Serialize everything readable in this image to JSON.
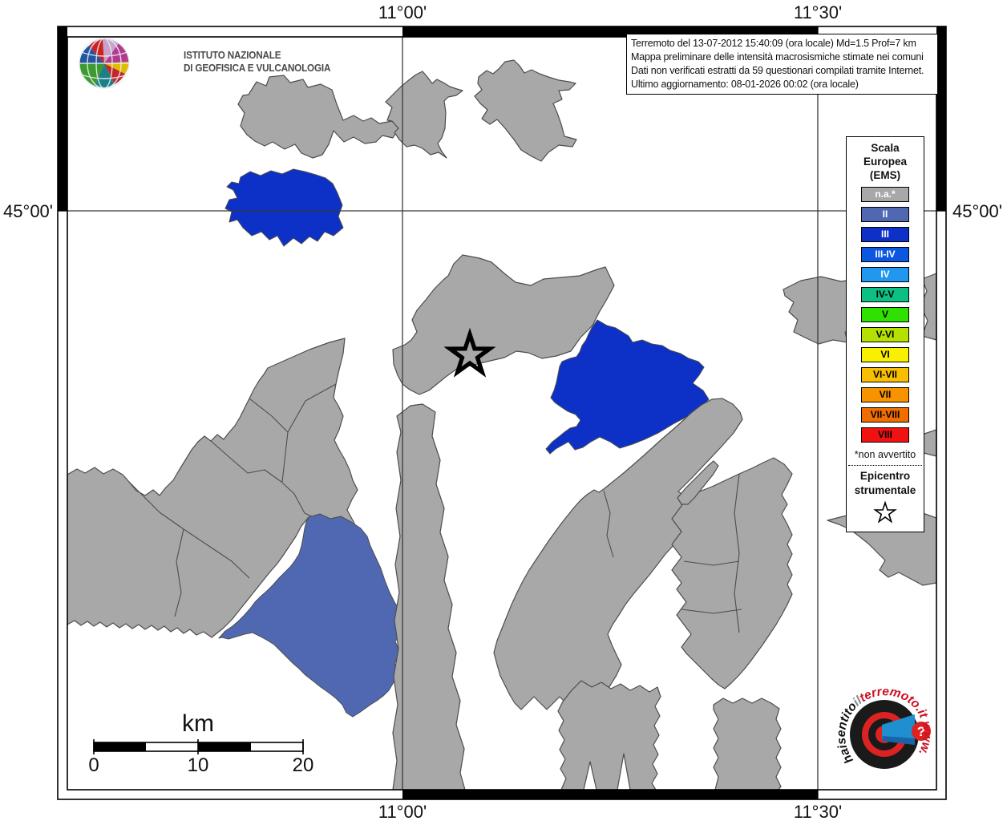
{
  "map": {
    "colors": {
      "land": "#a8a8a8",
      "border": "#4d4d4d",
      "int2": "#4f68b1",
      "int3": "#0d31c6",
      "grid": "#3a3a3a"
    },
    "axis": {
      "top_left": "11°00'",
      "top_right": "11°30'",
      "bottom_left": "11°00'",
      "bottom_right": "11°30'",
      "left": "45°00'",
      "right": "45°00'"
    },
    "title_box": {
      "line1": "Terremoto del 13-07-2012 15:40:09 (ora locale) Md=1.5 Prof=7 km",
      "line2": "Mappa preliminare delle intensità macrosismiche stimate nei comuni",
      "line3": "Dati non verificati estratti da 59 questionari compilati tramite Internet.",
      "line4": "Ultimo aggiornamento: 08-01-2026 00:02 (ora locale)"
    }
  },
  "legend": {
    "title_line1": "Scala",
    "title_line2": "Europea",
    "title_line3": "(EMS)",
    "entries": [
      {
        "label": "n.a.*",
        "color": "#a8a8a8",
        "text_color": "#ffffff"
      },
      {
        "label": "II",
        "color": "#4f68b1",
        "text_color": "#ffffff"
      },
      {
        "label": "III",
        "color": "#0d31c6",
        "text_color": "#ffffff"
      },
      {
        "label": "III-IV",
        "color": "#0b57e0",
        "text_color": "#ffffff"
      },
      {
        "label": "IV",
        "color": "#2297ef",
        "text_color": "#ffffff"
      },
      {
        "label": "IV-V",
        "color": "#0cbf82",
        "text_color": "#000000"
      },
      {
        "label": "V",
        "color": "#30e000",
        "text_color": "#000000"
      },
      {
        "label": "V-VI",
        "color": "#b5e000",
        "text_color": "#000000"
      },
      {
        "label": "VI",
        "color": "#f8f000",
        "text_color": "#000000"
      },
      {
        "label": "VI-VII",
        "color": "#f8be00",
        "text_color": "#000000"
      },
      {
        "label": "VII",
        "color": "#f89300",
        "text_color": "#000000"
      },
      {
        "label": "VII-VIII",
        "color": "#f06e00",
        "text_color": "#000000"
      },
      {
        "label": "VIII",
        "color": "#f21111",
        "text_color": "#000000"
      }
    ],
    "footnote": "*non avvertito",
    "epicenter_line1": "Epicentro",
    "epicenter_line2": "strumentale"
  },
  "scale_bar": {
    "unit": "km",
    "ticks": [
      "0",
      "10",
      "20"
    ]
  },
  "branding": {
    "ingv_line1": "ISTITUTO NAZIONALE",
    "ingv_line2": "DI GEOFISICA E VULCANOLOGIA",
    "site_part1": "haisentito",
    "site_part2": "il",
    "site_part3": "terremoto.it",
    "site_part4": " www.",
    "question_mark": "?"
  }
}
